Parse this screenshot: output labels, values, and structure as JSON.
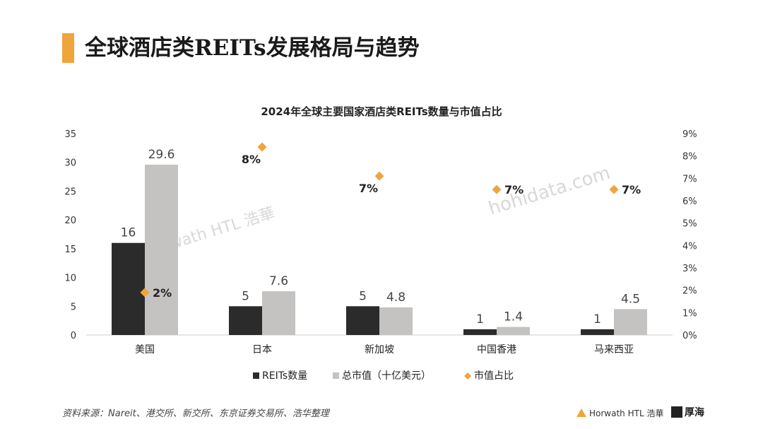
{
  "slide": {
    "title": "全球酒店类REITs发展格局与趋势",
    "source": "资料来源：Nareit、港交所、新交所、东京证券交易所、浩华整理",
    "logo_horwath": "Horwath HTL 浩華",
    "logo_houhai": "厚海",
    "watermark_1": "Horwath HTL 浩華",
    "watermark_2": "hohidata.com"
  },
  "colors": {
    "accent": "#F0A43C",
    "reits_count": "#2b2b2b",
    "market_cap": "#c4c3c1",
    "share": "#F0A43C"
  },
  "chart_data": {
    "type": "bar",
    "title": "2024年全球主要国家酒店类REITs数量与市值占比",
    "categories": [
      "美国",
      "日本",
      "新加坡",
      "中国香港",
      "马来西亚"
    ],
    "series": [
      {
        "name": "REITs数量",
        "values": [
          16,
          5,
          5,
          1,
          1
        ],
        "labels": [
          "16",
          "5",
          "5",
          "1",
          "1"
        ]
      },
      {
        "name": "总市值（十亿美元）",
        "values": [
          29.6,
          7.6,
          4.8,
          1.4,
          4.5
        ],
        "labels": [
          "29.6",
          "7.6",
          "4.8",
          "1.4",
          "4.5"
        ]
      },
      {
        "name": "市值占比",
        "type": "scatter",
        "axis": "right",
        "values": [
          1.9,
          8.4,
          7.1,
          6.5,
          6.5
        ],
        "labels": [
          "2%",
          "8%",
          "7%",
          "7%",
          "7%"
        ]
      }
    ],
    "ylim": [
      0,
      35
    ],
    "yticks": [
      "0",
      "5",
      "10",
      "15",
      "20",
      "25",
      "30",
      "35"
    ],
    "y2lim": [
      0,
      9
    ],
    "y2ticks": [
      "0%",
      "1%",
      "2%",
      "3%",
      "4%",
      "5%",
      "6%",
      "7%",
      "8%",
      "9%"
    ],
    "legend_position": "bottom",
    "grid": false
  }
}
